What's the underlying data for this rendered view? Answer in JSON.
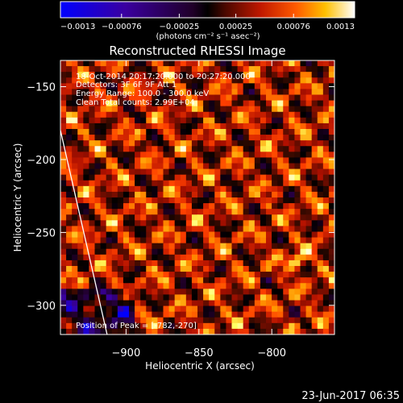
{
  "colorbar": {
    "tick_labels": [
      "-0.0013",
      "-0.00076",
      "-0.00025",
      "0.00025",
      "0.00076",
      "0.0013"
    ],
    "range": [
      -0.0013,
      0.0013
    ],
    "unit_label": "(photons cm⁻² s⁻¹ asec⁻²)"
  },
  "chart_data": {
    "type": "heatmap",
    "title": "Reconstructed RHESSI Image",
    "xlabel": "Heliocentric X (arcsec)",
    "ylabel": "Heliocentric Y (arcsec)",
    "xlim": [
      -945,
      -757
    ],
    "ylim": [
      -320,
      -132
    ],
    "x_ticks": [
      -900,
      -850,
      -800
    ],
    "y_ticks": [
      -300,
      -250,
      -200,
      -150
    ],
    "x_tick_labels": [
      "−900",
      "−850",
      "−800"
    ],
    "y_tick_labels": [
      "−300",
      "−250",
      "−200",
      "−150"
    ],
    "colormap": [
      "#0000ff",
      "#3a00a0",
      "#200028",
      "#000000",
      "#3a0a00",
      "#b01000",
      "#ff4000",
      "#ff9a00",
      "#ffff60",
      "#ffffff"
    ],
    "peak": [
      -782,
      -270
    ],
    "limb_line": [
      [
        -945,
        -180
      ],
      [
        -913,
        -320
      ]
    ],
    "annotations": {
      "time": "18-Oct-2014 20:17:20.000 to 20:27:20.000",
      "detectors": "Detectors: 3F 6F 9F  Att 1",
      "energy": "Energy Range: 100.0 - 300.0 keV",
      "clean": "Clean     Total counts: 2.99E+04",
      "peak": "Position of Peak = [-782,-270]"
    }
  },
  "footer": {
    "date": "23-Jun-2017 06:35"
  }
}
